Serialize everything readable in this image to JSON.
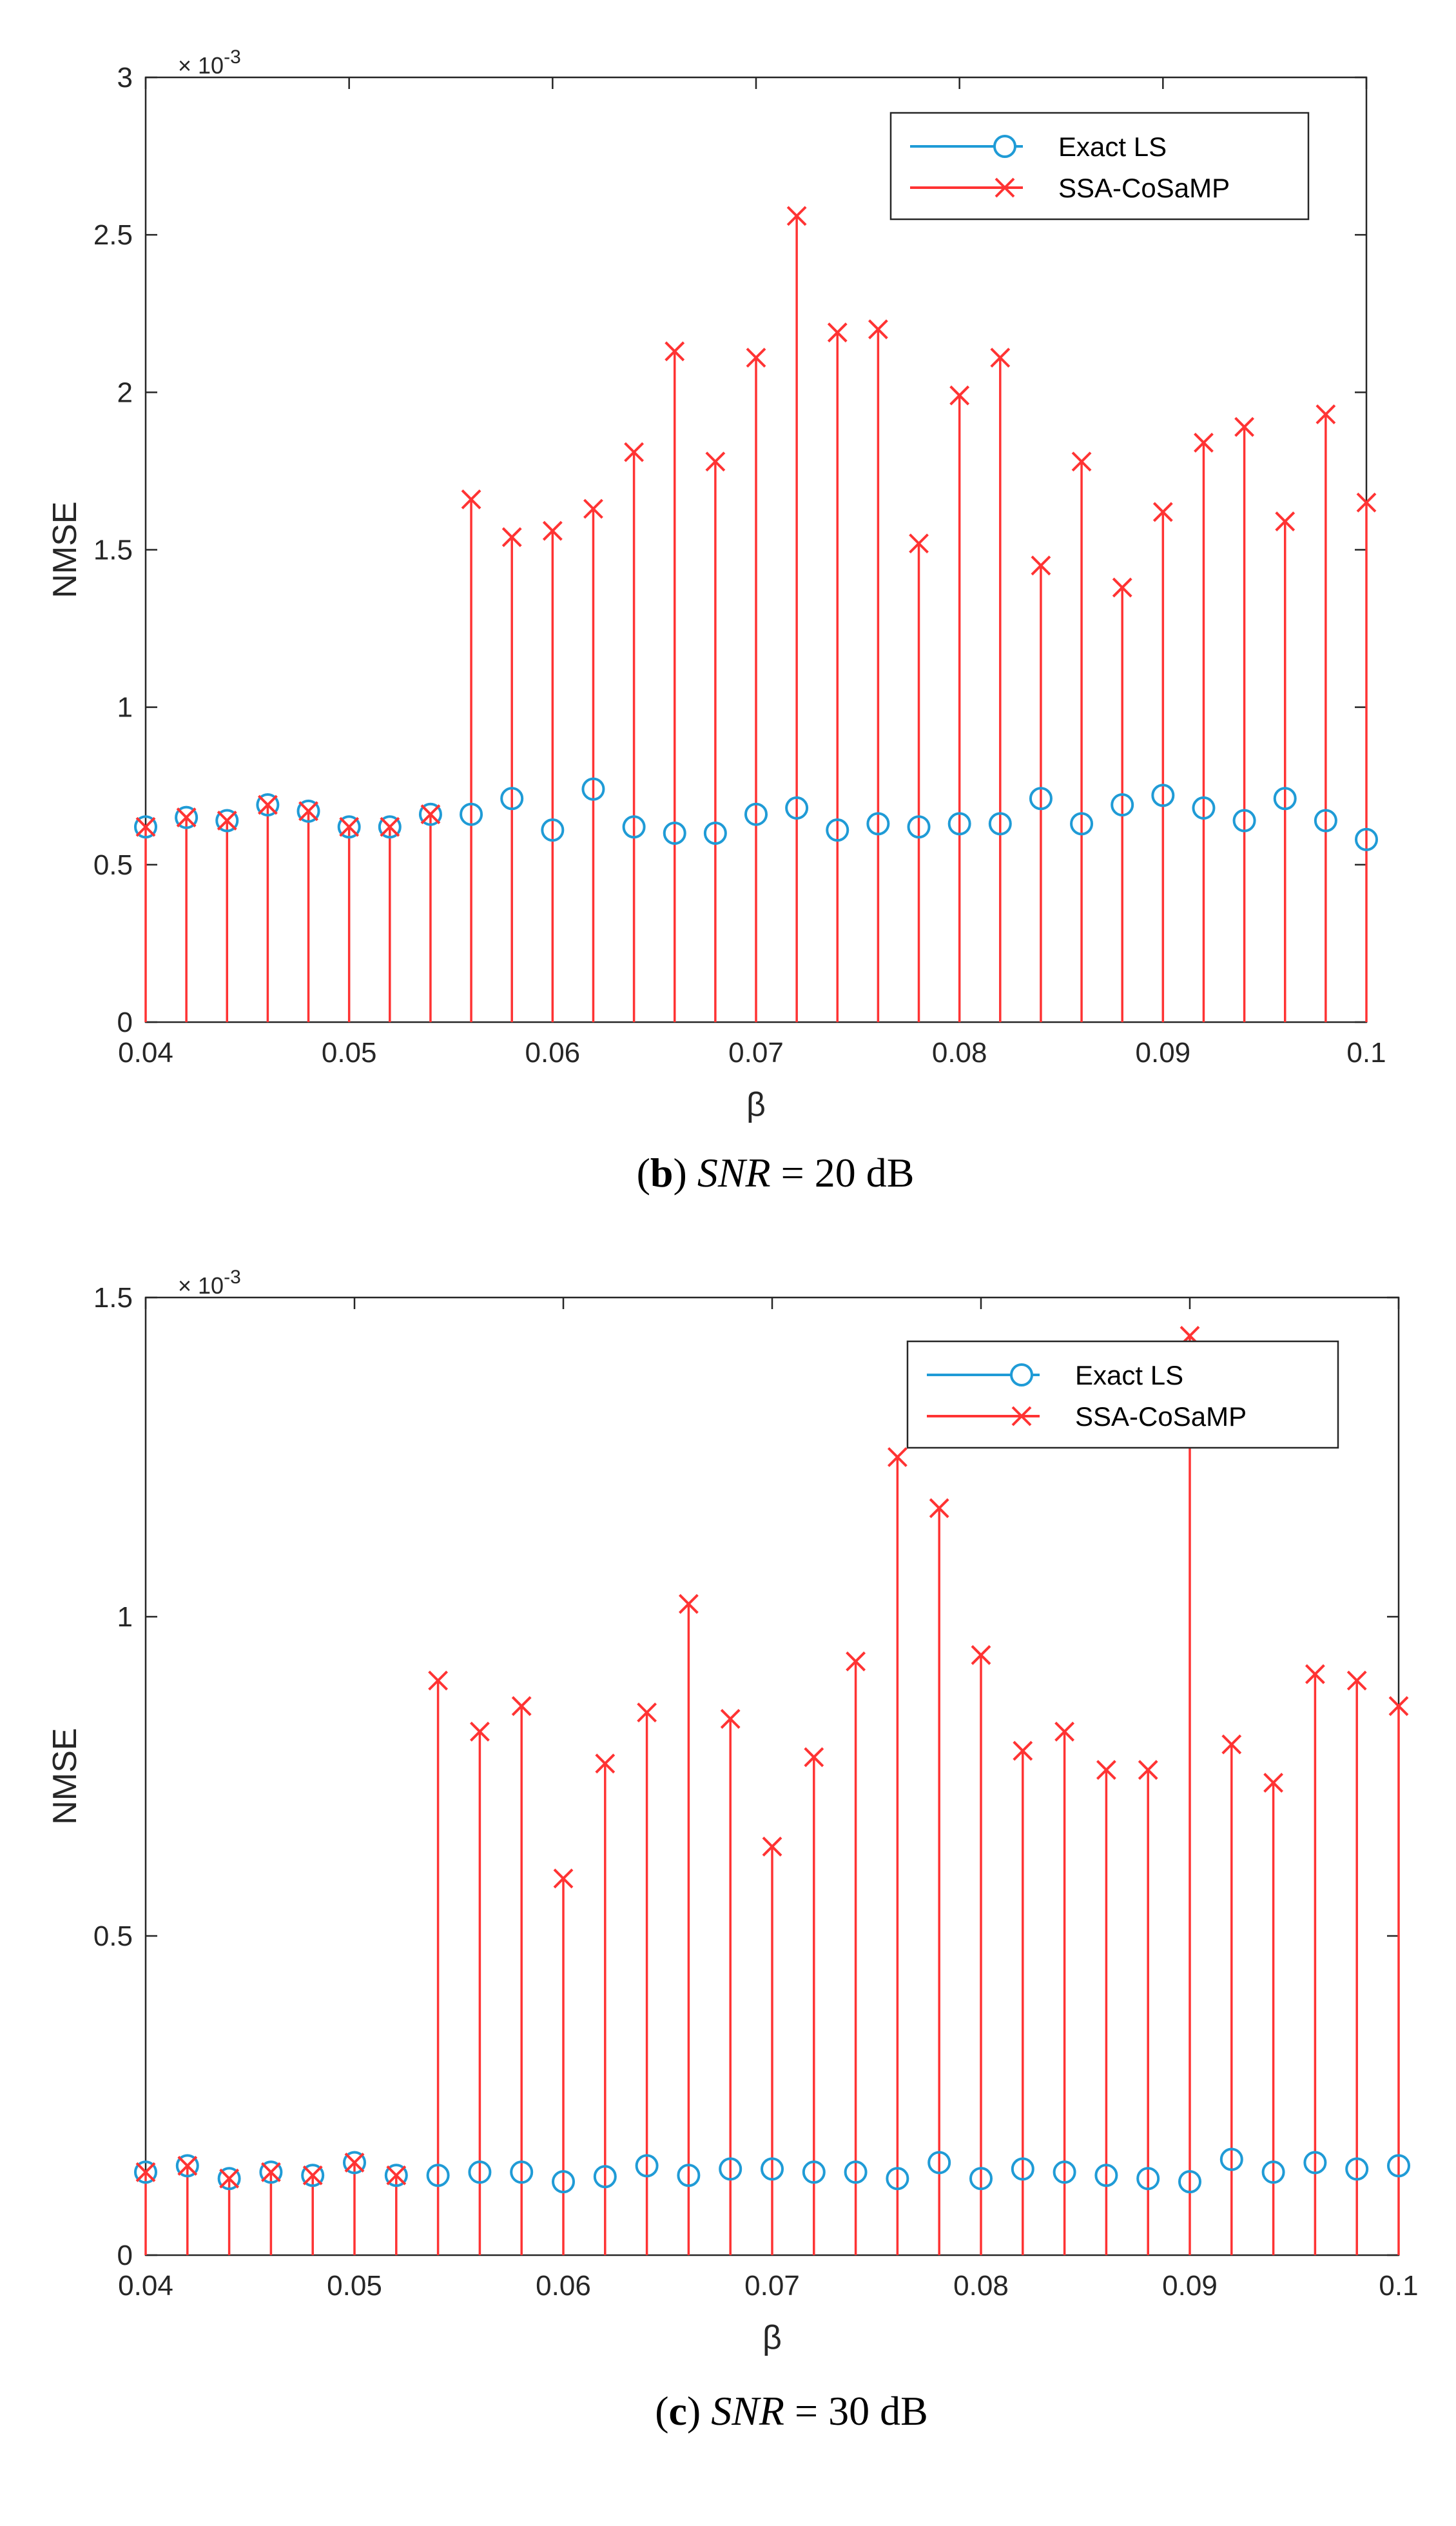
{
  "chart_data": [
    {
      "type": "stem",
      "caption": {
        "label": "b",
        "variable": "SNR",
        "equals": "=",
        "value": "20 dB"
      },
      "xlabel": "β",
      "ylabel": "NMSE",
      "exponent": "× 10-3",
      "xlim": [
        0.04,
        0.1
      ],
      "ylim": [
        0,
        3
      ],
      "xticks": [
        "0.04",
        "0.05",
        "0.06",
        "0.07",
        "0.08",
        "0.09",
        "0.1"
      ],
      "yticks": [
        "0",
        "0.5",
        "1",
        "1.5",
        "2",
        "2.5",
        "3"
      ],
      "legend": {
        "position": "top-right",
        "entries": [
          "Exact LS",
          "SSA-CoSaMP"
        ]
      },
      "x": [
        0.04,
        0.042,
        0.044,
        0.046,
        0.048,
        0.05,
        0.052,
        0.054,
        0.056,
        0.058,
        0.06,
        0.062,
        0.064,
        0.066,
        0.068,
        0.07,
        0.072,
        0.074,
        0.076,
        0.078,
        0.08,
        0.082,
        0.084,
        0.086,
        0.088,
        0.09,
        0.092,
        0.094,
        0.096,
        0.098,
        0.1
      ],
      "series": [
        {
          "name": "Exact LS",
          "color": "#1f9bd6",
          "marker": "circle",
          "values": [
            0.62,
            0.65,
            0.64,
            0.69,
            0.67,
            0.62,
            0.62,
            0.66,
            0.66,
            0.71,
            0.61,
            0.74,
            0.62,
            0.6,
            0.6,
            0.66,
            0.68,
            0.61,
            0.63,
            0.62,
            0.63,
            0.63,
            0.71,
            0.63,
            0.69,
            0.72,
            0.68,
            0.64,
            0.71,
            0.64,
            0.58
          ]
        },
        {
          "name": "SSA-CoSaMP",
          "color": "#ff3333",
          "marker": "x",
          "values": [
            0.62,
            0.65,
            0.64,
            0.69,
            0.67,
            0.62,
            0.62,
            0.66,
            1.66,
            1.54,
            1.56,
            1.63,
            1.81,
            2.13,
            1.78,
            2.11,
            2.56,
            2.19,
            2.2,
            1.52,
            1.99,
            2.11,
            1.45,
            1.78,
            1.38,
            1.62,
            1.84,
            1.89,
            1.59,
            1.93,
            1.65
          ]
        }
      ]
    },
    {
      "type": "stem",
      "caption": {
        "label": "c",
        "variable": "SNR",
        "equals": "=",
        "value": "30 dB"
      },
      "xlabel": "β",
      "ylabel": "NMSE",
      "exponent": "× 10-3",
      "xlim": [
        0.04,
        0.1
      ],
      "ylim": [
        0,
        1.5
      ],
      "xticks": [
        "0.04",
        "0.05",
        "0.06",
        "0.07",
        "0.08",
        "0.09",
        "0.1"
      ],
      "yticks": [
        "0",
        "0.5",
        "1",
        "1.5"
      ],
      "legend": {
        "position": "top-right",
        "entries": [
          "Exact LS",
          "SSA-CoSaMP"
        ]
      },
      "x": [
        0.04,
        0.042,
        0.044,
        0.046,
        0.048,
        0.05,
        0.052,
        0.054,
        0.056,
        0.058,
        0.06,
        0.062,
        0.064,
        0.066,
        0.068,
        0.07,
        0.072,
        0.074,
        0.076,
        0.078,
        0.08,
        0.082,
        0.084,
        0.086,
        0.088,
        0.09,
        0.092,
        0.094,
        0.096,
        0.098,
        0.1
      ],
      "series": [
        {
          "name": "Exact LS",
          "color": "#1f9bd6",
          "marker": "circle",
          "values": [
            0.13,
            0.14,
            0.12,
            0.13,
            0.125,
            0.145,
            0.125,
            0.125,
            0.13,
            0.13,
            0.115,
            0.123,
            0.14,
            0.125,
            0.135,
            0.135,
            0.13,
            0.13,
            0.12,
            0.145,
            0.12,
            0.135,
            0.13,
            0.125,
            0.12,
            0.115,
            0.15,
            0.13,
            0.145,
            0.135,
            0.14
          ]
        },
        {
          "name": "SSA-CoSaMP",
          "color": "#ff3333",
          "marker": "x",
          "values": [
            0.13,
            0.14,
            0.12,
            0.13,
            0.125,
            0.145,
            0.125,
            0.9,
            0.82,
            0.86,
            0.59,
            0.77,
            0.85,
            1.02,
            0.84,
            0.64,
            0.78,
            0.93,
            1.25,
            1.17,
            0.94,
            0.79,
            0.82,
            0.76,
            0.76,
            1.44,
            0.8,
            0.74,
            0.91,
            0.9,
            0.86
          ]
        }
      ]
    }
  ]
}
